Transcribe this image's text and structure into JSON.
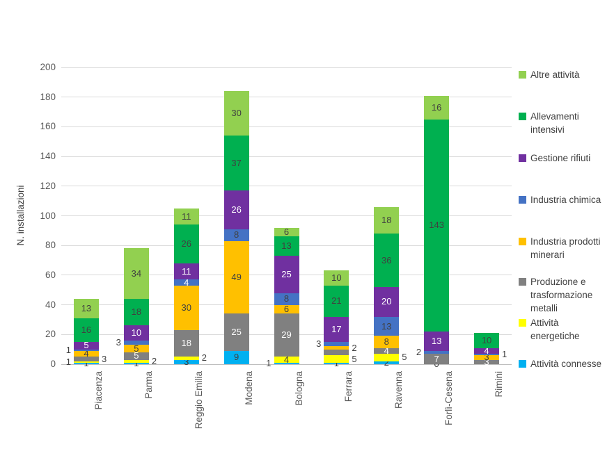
{
  "chart_data": {
    "type": "bar",
    "subtype": "stacked-vertical",
    "title": "",
    "xlabel": "",
    "ylabel": "N. installazioni",
    "ylim": [
      0,
      200
    ],
    "yticks": [
      0,
      20,
      40,
      60,
      80,
      100,
      120,
      140,
      160,
      180,
      200
    ],
    "grid": "horizontal",
    "legend_position": "right",
    "categories": [
      "Piacenza",
      "Parma",
      "Reggio Emilia",
      "Modena",
      "Bologna",
      "Ferrara",
      "Ravenna",
      "Forlì-Cesena",
      "Rimini"
    ],
    "series": [
      {
        "key": "attivita-connesse",
        "name": "Attività connesse",
        "color": "#00B0F0",
        "values": [
          1,
          1,
          3,
          9,
          1,
          1,
          2,
          0,
          0
        ],
        "label_pos": [
          "in",
          "in",
          "in",
          "in",
          "left",
          "in",
          "in",
          "in",
          null
        ],
        "tone": "dark"
      },
      {
        "key": "attivita-energetiche",
        "name": "Attività energetiche",
        "color": "#FFFF00",
        "values": [
          1,
          2,
          2,
          0,
          4,
          5,
          5,
          0,
          0
        ],
        "label_pos": [
          "left",
          "right",
          "right",
          null,
          "in",
          "right",
          "right",
          null,
          null
        ],
        "tone": "dark"
      },
      {
        "key": "produzione-trasformazione-metalli",
        "name": "Produzione e trasformazione metalli",
        "color": "#808080",
        "values": [
          3,
          5,
          18,
          25,
          29,
          4,
          4,
          7,
          3
        ],
        "label_pos": [
          "right",
          "in",
          "in",
          "in",
          "in",
          null,
          "in",
          "in",
          "in"
        ],
        "tone": "light"
      },
      {
        "key": "industria-prodotti-minerari",
        "name": "Industria prodotti minerari",
        "color": "#FFC000",
        "values": [
          4,
          5,
          30,
          49,
          6,
          2,
          8,
          0,
          3
        ],
        "label_pos": [
          "in",
          "in",
          "in",
          "in",
          "in",
          "right",
          "in",
          null,
          "in"
        ],
        "tone": "dark"
      },
      {
        "key": "industria-chimica",
        "name": "Industria chimica",
        "color": "#4472C4",
        "values": [
          1,
          3,
          4,
          8,
          8,
          3,
          13,
          2,
          1
        ],
        "label_pos": [
          "left",
          "left",
          "in",
          "in",
          "in",
          "left",
          "in",
          "left",
          "right"
        ],
        "tone": "dark",
        "tones": [
          null,
          null,
          "light",
          null,
          null,
          null,
          null,
          null,
          null
        ]
      },
      {
        "key": "gestione-rifiuti",
        "name": "Gestione rifiuti",
        "color": "#7030A0",
        "values": [
          5,
          10,
          11,
          26,
          25,
          17,
          20,
          13,
          4
        ],
        "label_pos": [
          "in",
          "in",
          "in",
          "in",
          "in",
          "in",
          "in",
          "in",
          "in"
        ],
        "tone": "light"
      },
      {
        "key": "allevamenti-intensivi",
        "name": "Allevamenti intensivi",
        "color": "#00B050",
        "values": [
          16,
          18,
          26,
          37,
          13,
          21,
          36,
          143,
          10
        ],
        "label_pos": [
          "in",
          "in",
          "in",
          "in",
          "in",
          "in",
          "in",
          "in",
          "in"
        ],
        "tone": "dark"
      },
      {
        "key": "altre-attivita",
        "name": "Altre attività",
        "color": "#92D050",
        "values": [
          13,
          34,
          11,
          30,
          6,
          10,
          18,
          16,
          0
        ],
        "label_pos": [
          "in",
          "in",
          "in",
          "in",
          "in",
          "in",
          "in",
          "in",
          null
        ],
        "tone": "dark"
      }
    ],
    "legend": {
      "items": [
        {
          "label": "Altre attività",
          "color": "#92D050"
        },
        {
          "label": "Allevamenti intensivi",
          "color": "#00B050"
        },
        {
          "label": "Gestione rifiuti",
          "color": "#7030A0"
        },
        {
          "label": "Industria chimica",
          "color": "#4472C4"
        },
        {
          "label": "Industria prodotti minerari",
          "color": "#FFC000"
        },
        {
          "label": "Produzione e trasformazione metalli",
          "color": "#808080"
        },
        {
          "label": "Attività energetiche",
          "color": "#FFFF00"
        },
        {
          "label": "Attività connesse",
          "color": "#00B0F0"
        }
      ]
    }
  }
}
